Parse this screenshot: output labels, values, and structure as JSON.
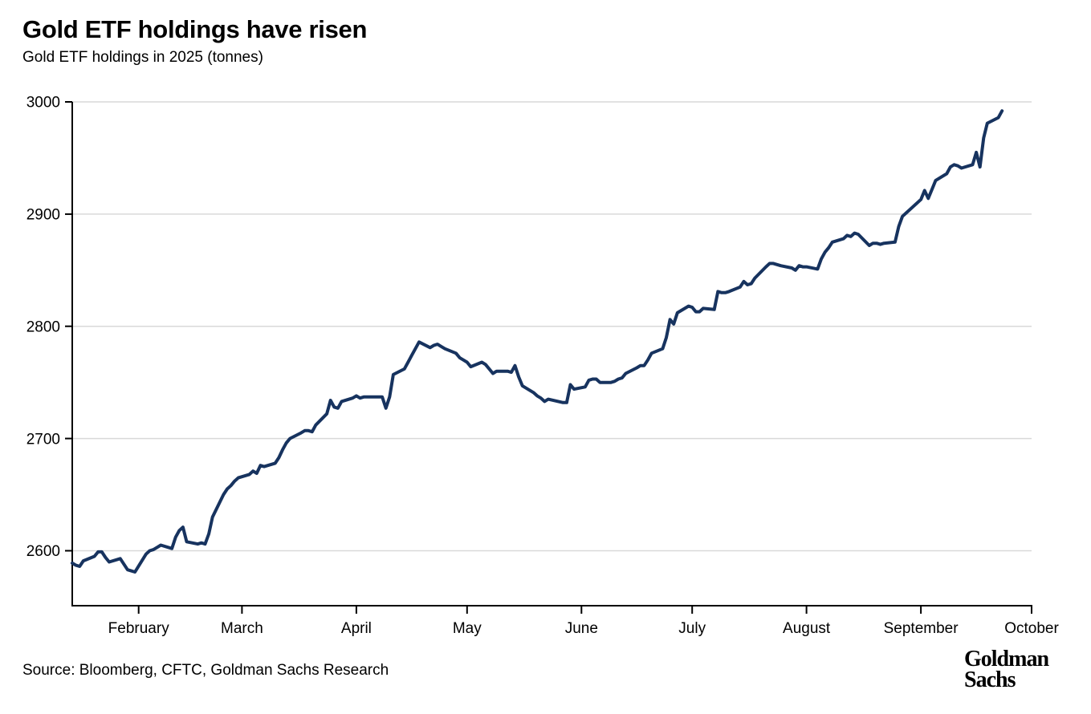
{
  "header": {
    "title": "Gold ETF holdings have risen",
    "subtitle": "Gold ETF holdings in 2025 (tonnes)"
  },
  "footer": {
    "source": "Source: Bloomberg, CFTC, Goldman Sachs Research",
    "logo": {
      "line1": "Goldman",
      "line2": "Sachs"
    }
  },
  "chart_data": {
    "type": "line",
    "title": "Gold ETF holdings have risen",
    "subtitle": "Gold ETF holdings in 2025 (tonnes)",
    "unit": "tonnes",
    "grid": "horizontal",
    "legend": "none",
    "x_range": [
      "2025-01-14",
      "2025-10-01"
    ],
    "ylim": [
      2551,
      3000
    ],
    "y_ticks": [
      2600,
      2700,
      2800,
      2900,
      3000
    ],
    "x_ticks": [
      {
        "date": "2025-02-01",
        "label": "February"
      },
      {
        "date": "2025-03-01",
        "label": "March"
      },
      {
        "date": "2025-04-01",
        "label": "April"
      },
      {
        "date": "2025-05-01",
        "label": "May"
      },
      {
        "date": "2025-06-01",
        "label": "June"
      },
      {
        "date": "2025-07-01",
        "label": "July"
      },
      {
        "date": "2025-08-01",
        "label": "August"
      },
      {
        "date": "2025-09-01",
        "label": "September"
      },
      {
        "date": "2025-10-01",
        "label": "October"
      }
    ],
    "colors": {
      "line": "#17335f",
      "grid": "#d9d9d9",
      "axis": "#000000",
      "text": "#000000"
    },
    "series": [
      {
        "name": "Gold ETF holdings (tonnes)",
        "color": "#17335f",
        "points": [
          [
            "2025-01-14",
            2589
          ],
          [
            "2025-01-15",
            2587
          ],
          [
            "2025-01-16",
            2586
          ],
          [
            "2025-01-17",
            2591
          ],
          [
            "2025-01-20",
            2595
          ],
          [
            "2025-01-21",
            2599
          ],
          [
            "2025-01-22",
            2599
          ],
          [
            "2025-01-23",
            2594
          ],
          [
            "2025-01-24",
            2590
          ],
          [
            "2025-01-27",
            2593
          ],
          [
            "2025-01-28",
            2588
          ],
          [
            "2025-01-29",
            2583
          ],
          [
            "2025-01-30",
            2582
          ],
          [
            "2025-01-31",
            2581
          ],
          [
            "2025-02-03",
            2597
          ],
          [
            "2025-02-04",
            2600
          ],
          [
            "2025-02-05",
            2601
          ],
          [
            "2025-02-06",
            2603
          ],
          [
            "2025-02-07",
            2605
          ],
          [
            "2025-02-10",
            2602
          ],
          [
            "2025-02-11",
            2612
          ],
          [
            "2025-02-12",
            2618
          ],
          [
            "2025-02-13",
            2621
          ],
          [
            "2025-02-14",
            2608
          ],
          [
            "2025-02-17",
            2606
          ],
          [
            "2025-02-18",
            2607
          ],
          [
            "2025-02-19",
            2606
          ],
          [
            "2025-02-20",
            2615
          ],
          [
            "2025-02-21",
            2630
          ],
          [
            "2025-02-24",
            2650
          ],
          [
            "2025-02-25",
            2655
          ],
          [
            "2025-02-26",
            2658
          ],
          [
            "2025-02-27",
            2662
          ],
          [
            "2025-02-28",
            2665
          ],
          [
            "2025-03-03",
            2668
          ],
          [
            "2025-03-04",
            2671
          ],
          [
            "2025-03-05",
            2669
          ],
          [
            "2025-03-06",
            2676
          ],
          [
            "2025-03-07",
            2675
          ],
          [
            "2025-03-10",
            2678
          ],
          [
            "2025-03-11",
            2683
          ],
          [
            "2025-03-12",
            2690
          ],
          [
            "2025-03-13",
            2696
          ],
          [
            "2025-03-14",
            2700
          ],
          [
            "2025-03-17",
            2705
          ],
          [
            "2025-03-18",
            2707
          ],
          [
            "2025-03-19",
            2707
          ],
          [
            "2025-03-20",
            2706
          ],
          [
            "2025-03-21",
            2712
          ],
          [
            "2025-03-24",
            2722
          ],
          [
            "2025-03-25",
            2734
          ],
          [
            "2025-03-26",
            2728
          ],
          [
            "2025-03-27",
            2727
          ],
          [
            "2025-03-28",
            2733
          ],
          [
            "2025-03-31",
            2736
          ],
          [
            "2025-04-01",
            2738
          ],
          [
            "2025-04-02",
            2736
          ],
          [
            "2025-04-03",
            2737
          ],
          [
            "2025-04-04",
            2737
          ],
          [
            "2025-04-07",
            2737
          ],
          [
            "2025-04-08",
            2737
          ],
          [
            "2025-04-09",
            2727
          ],
          [
            "2025-04-10",
            2737
          ],
          [
            "2025-04-11",
            2757
          ],
          [
            "2025-04-14",
            2762
          ],
          [
            "2025-04-15",
            2768
          ],
          [
            "2025-04-16",
            2774
          ],
          [
            "2025-04-17",
            2780
          ],
          [
            "2025-04-18",
            2786
          ],
          [
            "2025-04-21",
            2781
          ],
          [
            "2025-04-22",
            2783
          ],
          [
            "2025-04-23",
            2784
          ],
          [
            "2025-04-24",
            2782
          ],
          [
            "2025-04-25",
            2780
          ],
          [
            "2025-04-28",
            2776
          ],
          [
            "2025-04-29",
            2772
          ],
          [
            "2025-04-30",
            2770
          ],
          [
            "2025-05-01",
            2768
          ],
          [
            "2025-05-02",
            2764
          ],
          [
            "2025-05-05",
            2768
          ],
          [
            "2025-05-06",
            2766
          ],
          [
            "2025-05-07",
            2762
          ],
          [
            "2025-05-08",
            2758
          ],
          [
            "2025-05-09",
            2760
          ],
          [
            "2025-05-12",
            2760
          ],
          [
            "2025-05-13",
            2759
          ],
          [
            "2025-05-14",
            2765
          ],
          [
            "2025-05-15",
            2755
          ],
          [
            "2025-05-16",
            2747
          ],
          [
            "2025-05-19",
            2741
          ],
          [
            "2025-05-20",
            2738
          ],
          [
            "2025-05-21",
            2736
          ],
          [
            "2025-05-22",
            2733
          ],
          [
            "2025-05-23",
            2735
          ],
          [
            "2025-05-27",
            2732
          ],
          [
            "2025-05-28",
            2732
          ],
          [
            "2025-05-29",
            2748
          ],
          [
            "2025-05-30",
            2744
          ],
          [
            "2025-06-02",
            2746
          ],
          [
            "2025-06-03",
            2752
          ],
          [
            "2025-06-04",
            2753
          ],
          [
            "2025-06-05",
            2753
          ],
          [
            "2025-06-06",
            2750
          ],
          [
            "2025-06-09",
            2750
          ],
          [
            "2025-06-10",
            2751
          ],
          [
            "2025-06-11",
            2753
          ],
          [
            "2025-06-12",
            2754
          ],
          [
            "2025-06-13",
            2758
          ],
          [
            "2025-06-16",
            2763
          ],
          [
            "2025-06-17",
            2765
          ],
          [
            "2025-06-18",
            2765
          ],
          [
            "2025-06-19",
            2770
          ],
          [
            "2025-06-20",
            2776
          ],
          [
            "2025-06-23",
            2780
          ],
          [
            "2025-06-24",
            2790
          ],
          [
            "2025-06-25",
            2806
          ],
          [
            "2025-06-26",
            2802
          ],
          [
            "2025-06-27",
            2812
          ],
          [
            "2025-06-30",
            2818
          ],
          [
            "2025-07-01",
            2817
          ],
          [
            "2025-07-02",
            2813
          ],
          [
            "2025-07-03",
            2813
          ],
          [
            "2025-07-04",
            2816
          ],
          [
            "2025-07-07",
            2815
          ],
          [
            "2025-07-08",
            2831
          ],
          [
            "2025-07-09",
            2830
          ],
          [
            "2025-07-10",
            2830
          ],
          [
            "2025-07-11",
            2831
          ],
          [
            "2025-07-14",
            2835
          ],
          [
            "2025-07-15",
            2840
          ],
          [
            "2025-07-16",
            2837
          ],
          [
            "2025-07-17",
            2838
          ],
          [
            "2025-07-18",
            2843
          ],
          [
            "2025-07-21",
            2853
          ],
          [
            "2025-07-22",
            2856
          ],
          [
            "2025-07-23",
            2856
          ],
          [
            "2025-07-24",
            2855
          ],
          [
            "2025-07-25",
            2854
          ],
          [
            "2025-07-28",
            2852
          ],
          [
            "2025-07-29",
            2850
          ],
          [
            "2025-07-30",
            2854
          ],
          [
            "2025-07-31",
            2853
          ],
          [
            "2025-08-01",
            2853
          ],
          [
            "2025-08-04",
            2851
          ],
          [
            "2025-08-05",
            2860
          ],
          [
            "2025-08-06",
            2866
          ],
          [
            "2025-08-07",
            2870
          ],
          [
            "2025-08-08",
            2875
          ],
          [
            "2025-08-11",
            2878
          ],
          [
            "2025-08-12",
            2881
          ],
          [
            "2025-08-13",
            2880
          ],
          [
            "2025-08-14",
            2883
          ],
          [
            "2025-08-15",
            2882
          ],
          [
            "2025-08-18",
            2872
          ],
          [
            "2025-08-19",
            2874
          ],
          [
            "2025-08-20",
            2874
          ],
          [
            "2025-08-21",
            2873
          ],
          [
            "2025-08-22",
            2874
          ],
          [
            "2025-08-25",
            2875
          ],
          [
            "2025-08-26",
            2889
          ],
          [
            "2025-08-27",
            2898
          ],
          [
            "2025-08-28",
            2901
          ],
          [
            "2025-08-29",
            2904
          ],
          [
            "2025-09-01",
            2913
          ],
          [
            "2025-09-02",
            2921
          ],
          [
            "2025-09-03",
            2914
          ],
          [
            "2025-09-04",
            2922
          ],
          [
            "2025-09-05",
            2930
          ],
          [
            "2025-09-08",
            2936
          ],
          [
            "2025-09-09",
            2942
          ],
          [
            "2025-09-10",
            2944
          ],
          [
            "2025-09-11",
            2943
          ],
          [
            "2025-09-12",
            2941
          ],
          [
            "2025-09-15",
            2944
          ],
          [
            "2025-09-16",
            2955
          ],
          [
            "2025-09-17",
            2942
          ],
          [
            "2025-09-18",
            2968
          ],
          [
            "2025-09-19",
            2981
          ],
          [
            "2025-09-22",
            2986
          ],
          [
            "2025-09-23",
            2992
          ]
        ]
      }
    ]
  }
}
